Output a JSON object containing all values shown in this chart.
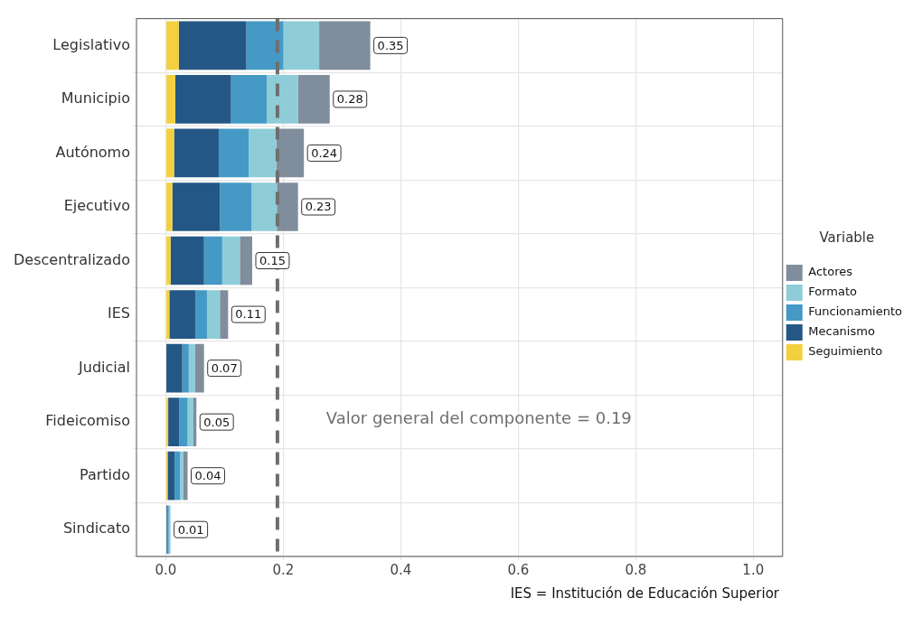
{
  "chart_data": {
    "type": "bar",
    "orientation": "horizontal",
    "stacked": true,
    "categories": [
      "Legislativo",
      "Municipio",
      "Autónomo",
      "Ejecutivo",
      "Descentralizado",
      "IES",
      "Judicial",
      "Fideicomiso",
      "Partido",
      "Sindicato"
    ],
    "series": [
      {
        "name": "Seguimiento",
        "color": "#f3d03e",
        "values": [
          0.022,
          0.016,
          0.014,
          0.011,
          0.008,
          0.006,
          0,
          0.004,
          0.003,
          0
        ]
      },
      {
        "name": "Mecanismo",
        "color": "#245785",
        "values": [
          0.115,
          0.095,
          0.076,
          0.081,
          0.057,
          0.044,
          0.028,
          0.019,
          0.012,
          0.002
        ]
      },
      {
        "name": "Funcionamiento",
        "color": "#4599c5",
        "values": [
          0.063,
          0.061,
          0.051,
          0.054,
          0.031,
          0.02,
          0.011,
          0.014,
          0.009,
          0.003
        ]
      },
      {
        "name": "Formato",
        "color": "#8ecdd8",
        "values": [
          0.061,
          0.053,
          0.047,
          0.043,
          0.03,
          0.022,
          0.011,
          0.01,
          0.006,
          0.003
        ]
      },
      {
        "name": "Actores",
        "color": "#808d9c",
        "values": [
          0.087,
          0.054,
          0.047,
          0.036,
          0.021,
          0.014,
          0.015,
          0.005,
          0.007,
          null
        ]
      }
    ],
    "totals": [
      "0.35",
      "0.28",
      "0.24",
      "0.23",
      "0.15",
      "0.11",
      "0.07",
      "0.05",
      "0.04",
      "0.01"
    ],
    "xlim": [
      -0.05,
      1.05
    ],
    "xticks": [
      {
        "value": 0,
        "label": "0.0"
      },
      {
        "value": 0.2,
        "label": "0.2"
      },
      {
        "value": 0.4,
        "label": "0.4"
      },
      {
        "value": 0.6,
        "label": "0.6"
      },
      {
        "value": 0.8,
        "label": "0.8"
      },
      {
        "value": 1,
        "label": "1.0"
      }
    ],
    "ref_lines": [
      {
        "axis": "x",
        "value": 0.19,
        "color": "#6e6e6e",
        "line_style": "dashed"
      }
    ],
    "legend": "right",
    "legend_title": "Variable",
    "grid": true,
    "annotations": [
      "Valor general del componente = 0.19",
      "IES = Institución de Educación Superior"
    ]
  }
}
